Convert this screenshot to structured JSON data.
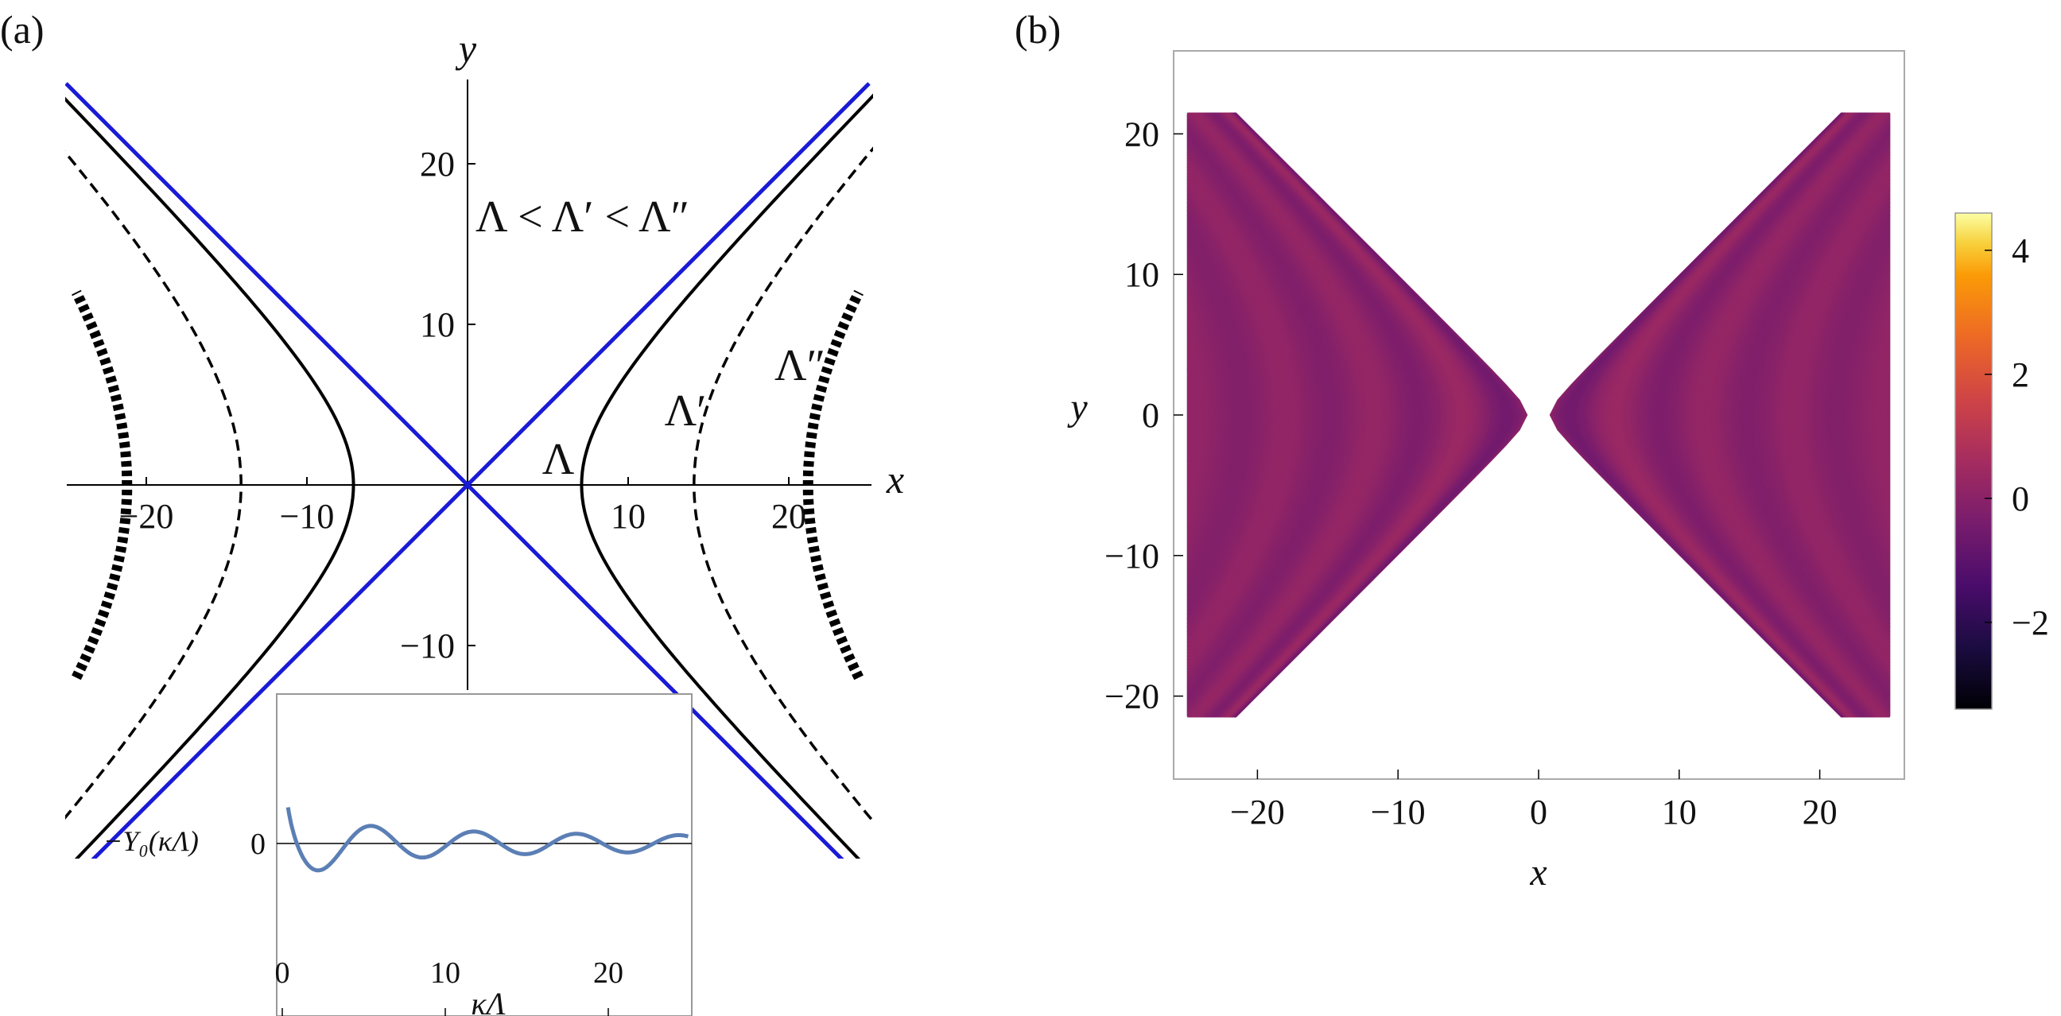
{
  "panels": {
    "a": {
      "tag": "(a)"
    },
    "b": {
      "tag": "(b)"
    }
  },
  "chart_data": [
    {
      "panel": "(a)",
      "type": "line",
      "description_shown": "x-y plane with hyperbolae x^2 - y^2 = Lambda^2 and asymptotes y = ±x",
      "xlabel": "x",
      "ylabel": "y",
      "xlim": [
        -25,
        25
      ],
      "ylim": [
        -25,
        25
      ],
      "xticks": [
        -20,
        -10,
        10,
        20
      ],
      "xtick_labels": [
        "−20",
        "−10",
        "10",
        "20"
      ],
      "yticks": [
        -10,
        10,
        20
      ],
      "ytick_labels": [
        "−10",
        "10",
        "20"
      ],
      "annotation": "Λ < Λ′ < Λ″",
      "series": [
        {
          "name": "Λ",
          "style": "solid",
          "color": "#000000",
          "vertex": 7.1
        },
        {
          "name": "Λ′",
          "style": "dashed",
          "color": "#000000",
          "vertex": 14.1
        },
        {
          "name": "Λ″",
          "style": "thick-dotted",
          "color": "#000000",
          "vertex": 21.2,
          "y_extent": 12
        },
        {
          "name": "asymptotes",
          "style": "solid",
          "color": "#1a1ad6",
          "slopes": [
            1,
            -1
          ]
        }
      ],
      "inset": {
        "type": "line",
        "xlabel": "κΛ",
        "ylabel": "−Y₀(κΛ)",
        "xlim": [
          0,
          25.5
        ],
        "xticks": [
          0,
          10,
          20
        ],
        "yticks": [
          0
        ],
        "function": "-Y0",
        "color": "#5b7fb5"
      }
    },
    {
      "panel": "(b)",
      "type": "heatmap",
      "xlabel": "x",
      "ylabel": "y",
      "xlim": [
        -26,
        26
      ],
      "ylim": [
        -26,
        26
      ],
      "xticks": [
        -20,
        -10,
        0,
        10,
        20
      ],
      "xtick_labels": [
        "−20",
        "−10",
        "0",
        "10",
        "20"
      ],
      "yticks": [
        -20,
        -10,
        0,
        10,
        20
      ],
      "ytick_labels": [
        "−20",
        "−10",
        "0",
        "10",
        "20"
      ],
      "region": "|x| > |y|",
      "field": "-Y0(sqrt(x^2 - y^2))",
      "colorbar": {
        "colormap": "inferno",
        "min": -3.4,
        "max": 4.6,
        "ticks": [
          4,
          2,
          0,
          -2
        ],
        "tick_labels": [
          "4",
          "2",
          "0",
          "−2"
        ]
      }
    }
  ]
}
